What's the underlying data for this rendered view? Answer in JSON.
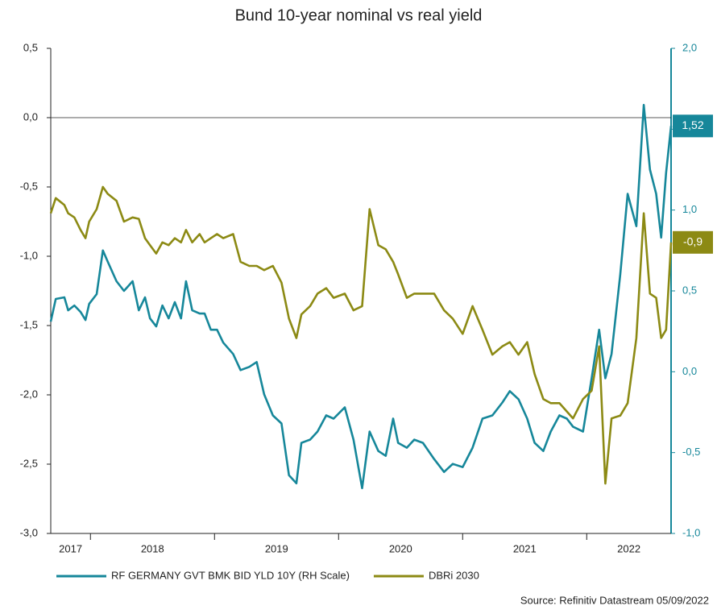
{
  "chart_data": {
    "type": "line",
    "title": "Bund 10-year nominal vs real yield",
    "source": "Source: Refinitiv Datastream 05/09/2022",
    "x": [
      2017.68,
      2017.72,
      2017.79,
      2017.82,
      2017.87,
      2017.92,
      2017.96,
      2017.99,
      2018.05,
      2018.1,
      2018.14,
      2018.21,
      2018.27,
      2018.34,
      2018.39,
      2018.44,
      2018.48,
      2018.53,
      2018.58,
      2018.63,
      2018.68,
      2018.73,
      2018.77,
      2018.82,
      2018.88,
      2018.92,
      2018.97,
      2019.02,
      2019.07,
      2019.15,
      2019.21,
      2019.28,
      2019.34,
      2019.4,
      2019.47,
      2019.54,
      2019.6,
      2019.66,
      2019.7,
      2019.77,
      2019.83,
      2019.9,
      2019.96,
      2020.05,
      2020.12,
      2020.19,
      2020.25,
      2020.32,
      2020.38,
      2020.44,
      2020.48,
      2020.55,
      2020.61,
      2020.68,
      2020.77,
      2020.85,
      2020.92,
      2021.0,
      2021.08,
      2021.16,
      2021.24,
      2021.32,
      2021.38,
      2021.45,
      2021.52,
      2021.58,
      2021.65,
      2021.71,
      2021.78,
      2021.84,
      2021.89,
      2021.97,
      2022.04,
      2022.1,
      2022.15,
      2022.2,
      2022.27,
      2022.33,
      2022.4,
      2022.46,
      2022.51,
      2022.56,
      2022.6,
      2022.64,
      2022.68
    ],
    "xlim": [
      2017.68,
      2022.68
    ],
    "xticks": [
      2017,
      2018,
      2019,
      2020,
      2021,
      2022
    ],
    "ylim": [
      -3.0,
      0.5
    ],
    "yticks": [
      {
        "value": 0.5,
        "label": "0,5"
      },
      {
        "value": 0,
        "label": "0,0"
      },
      {
        "value": -0.5,
        "label": "-0,5"
      },
      {
        "value": -1.0,
        "label": "-1,0"
      },
      {
        "value": -1.5,
        "label": "-1,5"
      },
      {
        "value": -2.0,
        "label": "-2,0"
      },
      {
        "value": -2.5,
        "label": "-2,5"
      },
      {
        "value": -3.0,
        "label": "-3,0"
      }
    ],
    "y2lim": [
      -1.0,
      2.0
    ],
    "y2ticks": [
      {
        "value": 2.0,
        "label": "2,0"
      },
      {
        "value": 1.5,
        "label": "1,5"
      },
      {
        "value": 1.0,
        "label": "1,0"
      },
      {
        "value": 0.5,
        "label": "0,5"
      },
      {
        "value": 0,
        "label": "0,0"
      },
      {
        "value": -0.5,
        "label": "-0,5"
      },
      {
        "value": -1.0,
        "label": "-1,0"
      }
    ],
    "legend": "bottom",
    "series": [
      {
        "name": "RF GERMANY GVT BMK BID YLD 10Y (RH Scale)",
        "color": "#16879a",
        "axis": "y2",
        "end_value_label": "1,52",
        "values": [
          0.31,
          0.45,
          0.46,
          0.38,
          0.41,
          0.37,
          0.32,
          0.42,
          0.48,
          0.75,
          0.68,
          0.56,
          0.5,
          0.56,
          0.38,
          0.46,
          0.33,
          0.28,
          0.41,
          0.33,
          0.43,
          0.33,
          0.56,
          0.38,
          0.36,
          0.36,
          0.26,
          0.26,
          0.18,
          0.11,
          0.01,
          0.03,
          0.06,
          -0.14,
          -0.27,
          -0.32,
          -0.64,
          -0.69,
          -0.44,
          -0.42,
          -0.37,
          -0.27,
          -0.29,
          -0.22,
          -0.42,
          -0.72,
          -0.37,
          -0.49,
          -0.52,
          -0.29,
          -0.44,
          -0.47,
          -0.42,
          -0.44,
          -0.54,
          -0.62,
          -0.57,
          -0.59,
          -0.47,
          -0.29,
          -0.27,
          -0.19,
          -0.12,
          -0.17,
          -0.29,
          -0.44,
          -0.49,
          -0.37,
          -0.27,
          -0.29,
          -0.34,
          -0.37,
          -0.04,
          0.26,
          -0.04,
          0.11,
          0.6,
          1.1,
          0.9,
          1.65,
          1.25,
          1.1,
          0.83,
          1.23,
          1.52
        ]
      },
      {
        "name": "DBRi 2030",
        "color": "#8c8a14",
        "end_value_label": "-0,9",
        "values": [
          -0.69,
          -0.58,
          -0.63,
          -0.69,
          -0.72,
          -0.81,
          -0.87,
          -0.75,
          -0.66,
          -0.5,
          -0.55,
          -0.6,
          -0.75,
          -0.72,
          -0.73,
          -0.87,
          -0.92,
          -0.98,
          -0.9,
          -0.92,
          -0.87,
          -0.9,
          -0.81,
          -0.9,
          -0.84,
          -0.9,
          -0.87,
          -0.84,
          -0.87,
          -0.84,
          -1.04,
          -1.07,
          -1.07,
          -1.1,
          -1.07,
          -1.19,
          -1.45,
          -1.59,
          -1.42,
          -1.36,
          -1.27,
          -1.23,
          -1.3,
          -1.27,
          -1.39,
          -1.36,
          -0.66,
          -0.92,
          -0.95,
          -1.04,
          -1.13,
          -1.3,
          -1.27,
          -1.27,
          -1.27,
          -1.39,
          -1.45,
          -1.56,
          -1.36,
          -1.53,
          -1.71,
          -1.65,
          -1.62,
          -1.71,
          -1.62,
          -1.85,
          -2.03,
          -2.06,
          -2.06,
          -2.12,
          -2.17,
          -2.03,
          -1.97,
          -1.65,
          -2.64,
          -2.17,
          -2.15,
          -2.06,
          -1.59,
          -0.69,
          -1.27,
          -1.3,
          -1.59,
          -1.53,
          -0.9
        ]
      }
    ]
  }
}
